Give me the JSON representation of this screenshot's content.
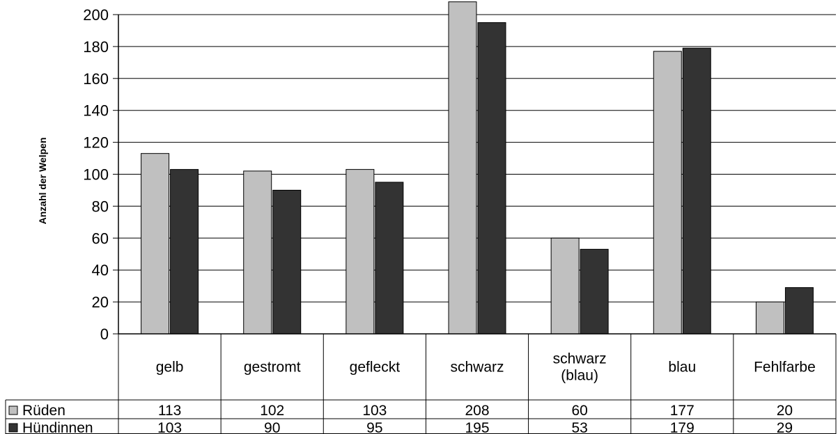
{
  "chart_data": {
    "type": "bar",
    "ylabel": "Anzahl der Welpen",
    "ylim": [
      0,
      200
    ],
    "yticks": [
      0,
      20,
      40,
      60,
      80,
      100,
      120,
      140,
      160,
      180,
      200
    ],
    "categories": [
      [
        "gelb"
      ],
      [
        "gestromt"
      ],
      [
        "gefleckt"
      ],
      [
        "schwarz"
      ],
      [
        "schwarz",
        "(blau)"
      ],
      [
        "blau"
      ],
      [
        "Fehlfarbe"
      ]
    ],
    "series": [
      {
        "name": "Rüden",
        "color": "#c0c0c0",
        "values": [
          113,
          102,
          103,
          208,
          60,
          177,
          20
        ]
      },
      {
        "name": "Hündinnen",
        "color": "#333333",
        "values": [
          103,
          90,
          95,
          195,
          53,
          179,
          29
        ]
      }
    ],
    "grid": true,
    "legend": "data-table"
  }
}
